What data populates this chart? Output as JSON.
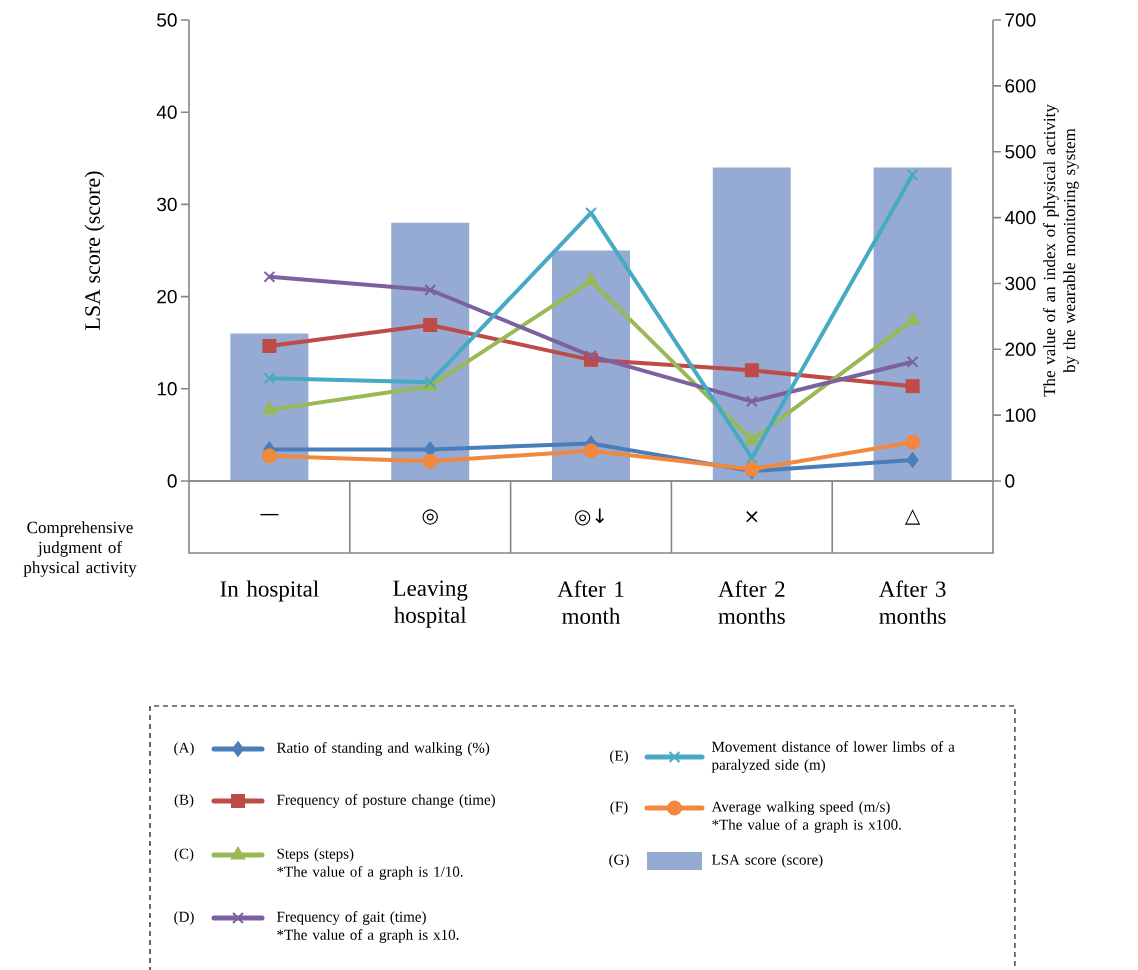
{
  "chart_data": {
    "type": "bar",
    "ylabel": "LSA score (score)",
    "y2label": "The value of an index of physical activity by the wearable monitoring system",
    "categories": [
      "In hospital",
      "Leaving hospital",
      "After 1 month",
      "After 2 months",
      "After 3 months"
    ],
    "ylim": [
      0,
      50
    ],
    "yticks": [
      0,
      10,
      20,
      30,
      40,
      50
    ],
    "y2lim": [
      0,
      700
    ],
    "y2ticks": [
      0,
      100,
      200,
      300,
      400,
      500,
      600,
      700
    ],
    "legend": "bottom",
    "series": [
      {
        "name": "Ratio of standing and walking (%)",
        "type": "line",
        "axis": "y2",
        "marker": "diamond",
        "color": "#4a7ebb",
        "values": [
          48,
          48,
          57,
          15,
          32
        ]
      },
      {
        "name": "Frequency of posture change (time)",
        "type": "line",
        "axis": "y2",
        "marker": "square",
        "color": "#be4b48",
        "values": [
          205,
          237,
          184,
          168,
          144
        ]
      },
      {
        "name": "Steps (steps)",
        "type": "line",
        "axis": "y2",
        "marker": "triangle",
        "color": "#98b954",
        "values": [
          108,
          144,
          304,
          62,
          244
        ]
      },
      {
        "name": "Frequency of gait (time)",
        "type": "line",
        "axis": "y2",
        "marker": "cross",
        "color": "#7d60a0",
        "values": [
          310,
          290,
          190,
          121,
          181
        ]
      },
      {
        "name": "Movement distance of  lower limbs of a paralyzed side (m)",
        "type": "line",
        "axis": "y2",
        "marker": "cross",
        "color": "#46aac5",
        "values": [
          156,
          150,
          407,
          35,
          465
        ]
      },
      {
        "name": "Average walking speed (m/s)",
        "type": "line",
        "axis": "y2",
        "marker": "circle",
        "color": "#f0883e",
        "values": [
          38,
          30,
          46,
          18,
          59
        ]
      },
      {
        "name": "LSA score (score)",
        "color": "#95abd3",
        "values": [
          16,
          28,
          25,
          34,
          34
        ]
      }
    ],
    "annotations": [
      "Comprehensive judgment of physical activity",
      "—",
      "◎",
      "◎↓",
      "×",
      "△",
      "(A)",
      "(B)",
      "(C)",
      "(D)",
      "(E)",
      "(F)",
      "(G)",
      "*The value of a graph is 1/10.",
      "*The value of a graph is x10.",
      "*The value of a graph is x100."
    ]
  }
}
